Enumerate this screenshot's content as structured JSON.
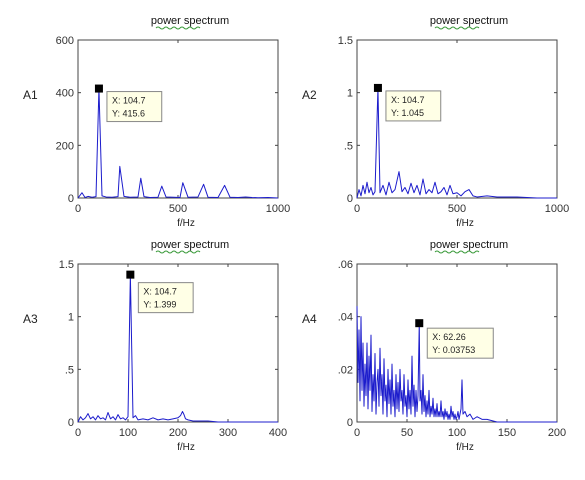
{
  "chart_data": [
    {
      "type": "line",
      "title": "power spectrum",
      "ylabel": "A1",
      "xlabel": "f/Hz",
      "xlim": [
        0,
        1000
      ],
      "ylim": [
        0,
        600
      ],
      "xticks": [
        0,
        500,
        1000
      ],
      "yticks": [
        0,
        200,
        400,
        600
      ],
      "series": [
        {
          "color": "#1c1ccc",
          "x": [
            0,
            20,
            35,
            50,
            70,
            90,
            104.7,
            120,
            140,
            170,
            200,
            209,
            230,
            260,
            300,
            314,
            330,
            360,
            400,
            419,
            440,
            480,
            510,
            524,
            550,
            600,
            628,
            650,
            700,
            733,
            760,
            800,
            838,
            870,
            900,
            950,
            1000
          ],
          "y": [
            0,
            20,
            2,
            6,
            3,
            5,
            415.6,
            8,
            4,
            3,
            5,
            120,
            6,
            3,
            4,
            75,
            5,
            2,
            3,
            45,
            4,
            3,
            2,
            58,
            3,
            4,
            52,
            3,
            2,
            48,
            3,
            2,
            4,
            2,
            1,
            2,
            0
          ]
        }
      ],
      "datatip": {
        "x_text": "X: 104.7",
        "y_text": "Y: 415.6",
        "x": 104.7,
        "y": 415.6
      }
    },
    {
      "type": "line",
      "title": "power spectrum",
      "ylabel": "A2",
      "xlabel": "f/Hz",
      "xlim": [
        0,
        1000
      ],
      "ylim": [
        0,
        1.5
      ],
      "xticks": [
        0,
        500,
        1000
      ],
      "yticks": [
        0,
        0.5,
        1,
        1.5
      ],
      "series": [
        {
          "color": "#1c1ccc",
          "x": [
            0,
            10,
            20,
            30,
            40,
            50,
            60,
            70,
            80,
            90,
            104.7,
            115,
            130,
            145,
            160,
            175,
            190,
            210,
            225,
            240,
            255,
            270,
            285,
            300,
            315,
            330,
            345,
            360,
            375,
            390,
            405,
            420,
            435,
            450,
            465,
            480,
            500,
            520,
            540,
            560,
            580,
            600,
            650,
            700,
            800,
            900,
            1000
          ],
          "y": [
            0,
            0.08,
            0.02,
            0.12,
            0.04,
            0.15,
            0.05,
            0.1,
            0.03,
            0.06,
            1.045,
            0.05,
            0.12,
            0.03,
            0.15,
            0.05,
            0.08,
            0.25,
            0.06,
            0.1,
            0.04,
            0.14,
            0.05,
            0.12,
            0.03,
            0.18,
            0.04,
            0.08,
            0.05,
            0.15,
            0.04,
            0.06,
            0.1,
            0.03,
            0.12,
            0.04,
            0.05,
            0.02,
            0.06,
            0.08,
            0.02,
            0.01,
            0.02,
            0.01,
            0.01,
            0.0,
            0.0
          ]
        }
      ],
      "datatip": {
        "x_text": "X: 104.7",
        "y_text": "Y: 1.045",
        "x": 104.7,
        "y": 1.045
      }
    },
    {
      "type": "line",
      "title": "power spectrum",
      "ylabel": "A3",
      "xlabel": "f/Hz",
      "xlim": [
        0,
        400
      ],
      "ylim": [
        0,
        1.5
      ],
      "xticks": [
        0,
        100,
        200,
        300,
        400
      ],
      "yticks": [
        0,
        0.5,
        1,
        1.5
      ],
      "series": [
        {
          "color": "#1c1ccc",
          "x": [
            0,
            5,
            10,
            15,
            20,
            25,
            30,
            35,
            40,
            45,
            50,
            55,
            60,
            65,
            70,
            75,
            80,
            85,
            90,
            95,
            100,
            104.7,
            110,
            115,
            120,
            130,
            140,
            150,
            160,
            170,
            180,
            190,
            200,
            205,
            209,
            212,
            215,
            220,
            230,
            240,
            260,
            280,
            300,
            320,
            340,
            360,
            380,
            400
          ],
          "y": [
            0,
            0.05,
            0.02,
            0.04,
            0.08,
            0.03,
            0.05,
            0.02,
            0.06,
            0.03,
            0.04,
            0.02,
            0.09,
            0.03,
            0.05,
            0.02,
            0.07,
            0.03,
            0.04,
            0.02,
            0.05,
            1.399,
            0.04,
            0.06,
            0.02,
            0.03,
            0.02,
            0.04,
            0.02,
            0.03,
            0.02,
            0.03,
            0.04,
            0.06,
            0.1,
            0.07,
            0.03,
            0.02,
            0.01,
            0.01,
            0.01,
            0.0,
            0.0,
            0.0,
            0.0,
            0.0,
            0.0,
            0.0
          ]
        }
      ],
      "datatip": {
        "x_text": "X: 104.7",
        "y_text": "Y: 1.399",
        "x": 104.7,
        "y": 1.399
      }
    },
    {
      "type": "line",
      "title": "power spectrum",
      "ylabel": "A4",
      "xlabel": "f/Hz",
      "xlim": [
        0,
        200
      ],
      "ylim": [
        0,
        0.06
      ],
      "xticks": [
        0,
        50,
        100,
        150,
        200
      ],
      "yticks": [
        0,
        0.02,
        0.04,
        0.06
      ],
      "series": [
        {
          "color": "#1c1ccc",
          "x": [
            0,
            1,
            2,
            3,
            4,
            5,
            6,
            7,
            8,
            9,
            10,
            11,
            12,
            13,
            14,
            15,
            16,
            17,
            18,
            19,
            20,
            21,
            22,
            23,
            24,
            25,
            26,
            27,
            28,
            29,
            30,
            31,
            32,
            33,
            34,
            35,
            36,
            37,
            38,
            39,
            40,
            41,
            42,
            43,
            44,
            45,
            46,
            47,
            48,
            49,
            50,
            51,
            52,
            53,
            54,
            55,
            56,
            57,
            58,
            59,
            60,
            61,
            62.26,
            63,
            64,
            65,
            66,
            67,
            68,
            69,
            70,
            71,
            72,
            73,
            74,
            75,
            76,
            77,
            78,
            79,
            80,
            81,
            82,
            83,
            84,
            85,
            86,
            87,
            88,
            89,
            90,
            91,
            92,
            93,
            94,
            95,
            96,
            97,
            98,
            99,
            100,
            101,
            102,
            103,
            104,
            105,
            106,
            108,
            110,
            113,
            116,
            120,
            125,
            130,
            140,
            150,
            160,
            180,
            200
          ],
          "y": [
            0.044,
            0.015,
            0.035,
            0.008,
            0.04,
            0.012,
            0.03,
            0.006,
            0.022,
            0.01,
            0.03,
            0.005,
            0.025,
            0.012,
            0.033,
            0.004,
            0.018,
            0.008,
            0.026,
            0.003,
            0.015,
            0.02,
            0.006,
            0.028,
            0.01,
            0.018,
            0.003,
            0.024,
            0.008,
            0.014,
            0.002,
            0.02,
            0.007,
            0.016,
            0.003,
            0.022,
            0.006,
            0.012,
            0.002,
            0.018,
            0.005,
            0.015,
            0.004,
            0.02,
            0.008,
            0.012,
            0.003,
            0.018,
            0.006,
            0.01,
            0.002,
            0.016,
            0.005,
            0.012,
            0.003,
            0.025,
            0.006,
            0.014,
            0.002,
            0.012,
            0.004,
            0.01,
            0.03753,
            0.008,
            0.012,
            0.003,
            0.018,
            0.004,
            0.01,
            0.002,
            0.008,
            0.003,
            0.012,
            0.002,
            0.006,
            0.003,
            0.009,
            0.002,
            0.005,
            0.002,
            0.007,
            0.002,
            0.004,
            0.002,
            0.008,
            0.002,
            0.004,
            0.001,
            0.005,
            0.002,
            0.004,
            0.001,
            0.003,
            0.001,
            0.006,
            0.002,
            0.004,
            0.001,
            0.003,
            0.001,
            0.002,
            0.004,
            0.001,
            0.003,
            0.005,
            0.016,
            0.003,
            0.004,
            0.002,
            0.003,
            0.001,
            0.002,
            0.001,
            0.001,
            0.0,
            0.0,
            0.0,
            0.0,
            0.0
          ]
        }
      ],
      "datatip": {
        "x_text": "X: 62.26",
        "y_text": "Y: 0.03753",
        "x": 62.26,
        "y": 0.03753
      }
    }
  ]
}
